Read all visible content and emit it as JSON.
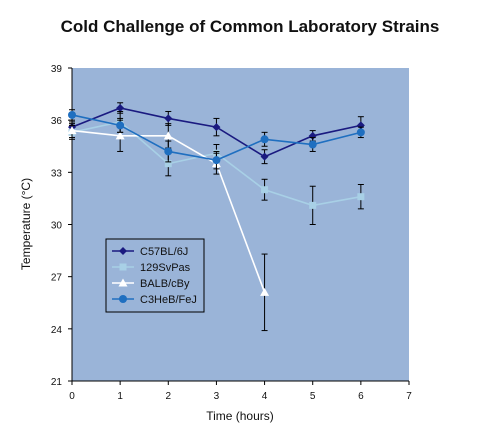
{
  "chart_data": {
    "type": "line",
    "title": "Cold Challenge of Common Laboratory Strains",
    "xlabel": "Time (hours)",
    "ylabel": "Temperature (°C)",
    "xlim": [
      0,
      7
    ],
    "ylim": [
      21,
      39
    ],
    "x_ticks": [
      0,
      1,
      2,
      3,
      4,
      5,
      6,
      7
    ],
    "y_ticks": [
      21,
      24,
      27,
      30,
      33,
      36,
      39
    ],
    "plot_background": "#9ab4d8",
    "legend_position": "lower-left",
    "series": [
      {
        "name": "C57BL/6J",
        "color": "#1a1a80",
        "marker": "diamond",
        "x": [
          0,
          1,
          2,
          3,
          4,
          5,
          6
        ],
        "y": [
          35.6,
          36.7,
          36.1,
          35.6,
          33.9,
          35.1,
          35.7
        ],
        "err": [
          0.3,
          0.3,
          0.4,
          0.5,
          0.4,
          0.3,
          0.5
        ]
      },
      {
        "name": "129SvPas",
        "color": "#a8d0e6",
        "marker": "square",
        "x": [
          0,
          1,
          2,
          3,
          4,
          5,
          6
        ],
        "y": [
          35.3,
          35.9,
          33.5,
          34.1,
          32.0,
          31.1,
          31.6
        ],
        "err": [
          0.4,
          0.6,
          0.7,
          0.5,
          0.6,
          1.1,
          0.7
        ]
      },
      {
        "name": "BALB/cBy",
        "color": "#ffffff",
        "marker": "triangle",
        "x": [
          0,
          1,
          2,
          3,
          4
        ],
        "y": [
          35.4,
          35.1,
          35.1,
          33.5,
          26.1
        ],
        "err": [
          0.4,
          0.9,
          0.7,
          0.6,
          2.2
        ]
      },
      {
        "name": "C3HeB/FeJ",
        "color": "#1f6fc0",
        "marker": "circle",
        "x": [
          0,
          1,
          2,
          3,
          4,
          5,
          6
        ],
        "y": [
          36.3,
          35.7,
          34.2,
          33.7,
          34.9,
          34.6,
          35.3
        ],
        "err": [
          0.3,
          0.4,
          0.6,
          0.5,
          0.4,
          0.4,
          0.3
        ]
      }
    ]
  }
}
